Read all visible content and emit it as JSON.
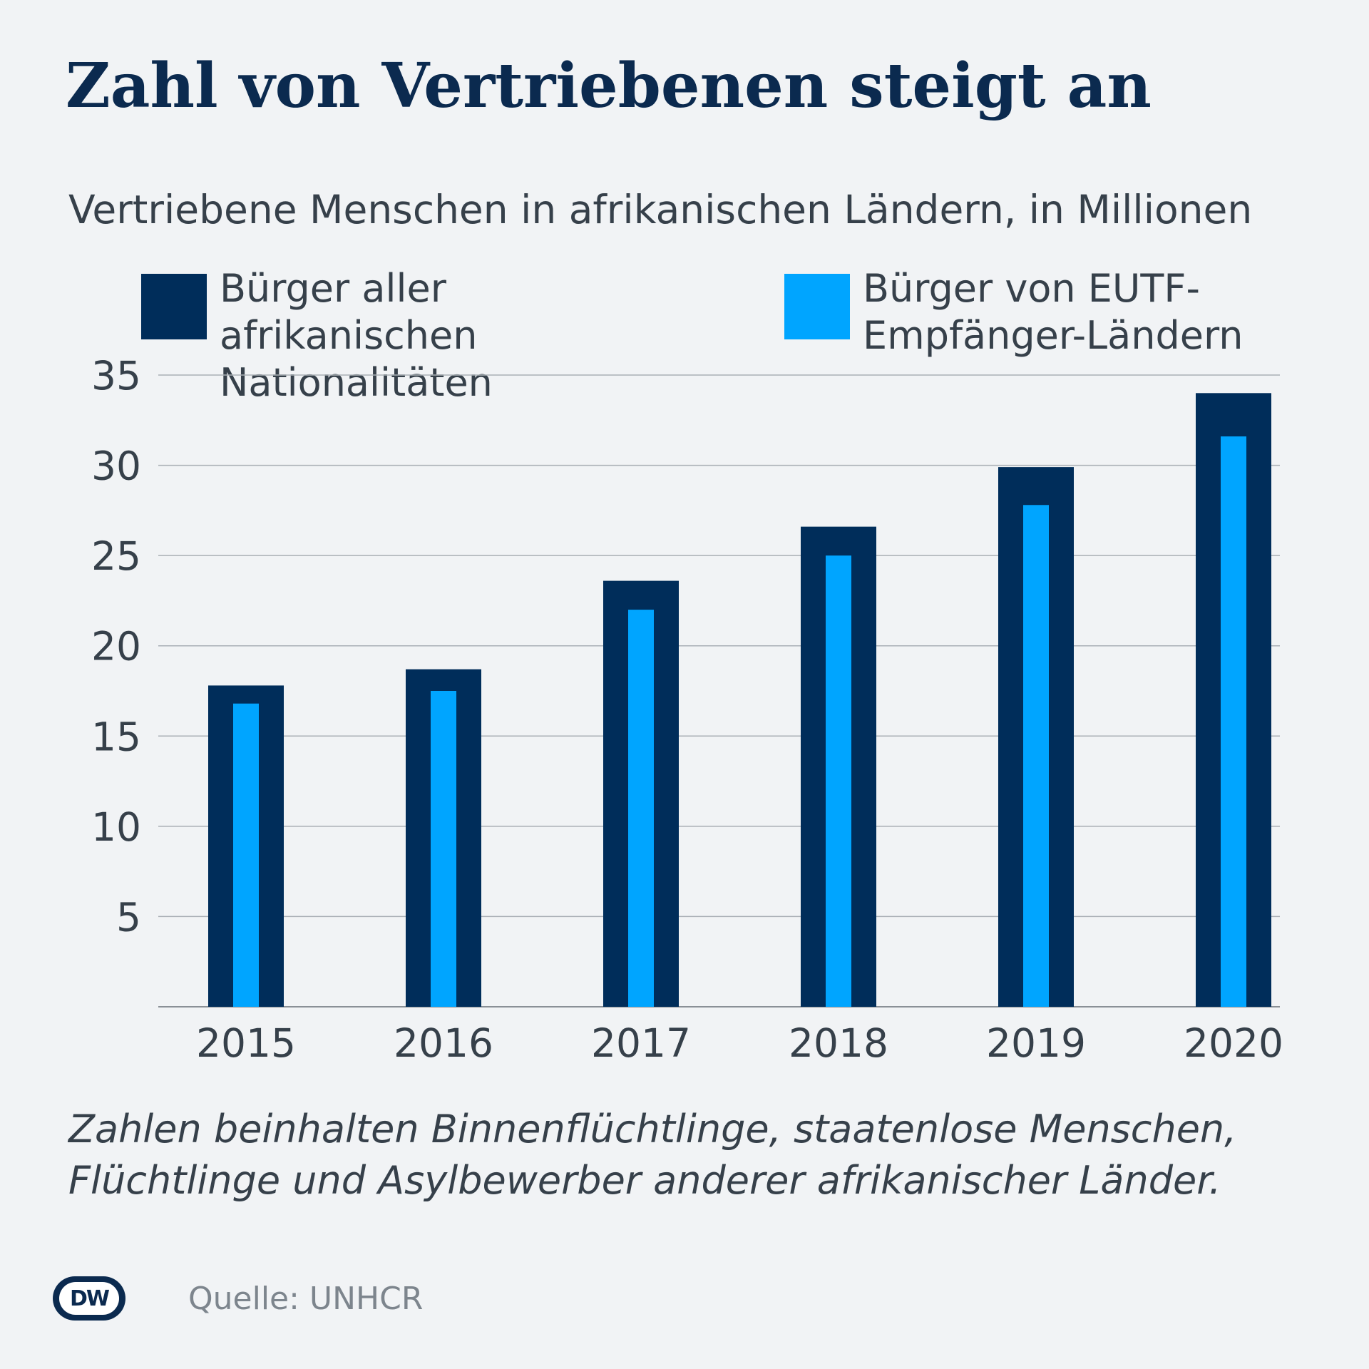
{
  "title": "Zahl von Vertriebenen steigt an",
  "subtitle": "Vertriebene Menschen in afrikanischen Ländern, in Millionen",
  "legend": [
    {
      "label": "Bürger aller afrikanischen Nationalitäten",
      "color": "#002d5a"
    },
    {
      "label": "Bürger von EUTF-Empfänger-Ländern",
      "color": "#00a5ff"
    }
  ],
  "chart_data": {
    "type": "bar",
    "categories": [
      "2015",
      "2016",
      "2017",
      "2018",
      "2019",
      "2020"
    ],
    "series": [
      {
        "name": "Bürger aller afrikanischen Nationalitäten",
        "values": [
          17.8,
          18.7,
          23.6,
          26.6,
          29.9,
          34.0
        ],
        "color": "#002d5a"
      },
      {
        "name": "Bürger von EUTF-Empfänger-Ländern",
        "values": [
          16.8,
          17.5,
          22.0,
          25.0,
          27.8,
          31.6
        ],
        "color": "#00a5ff"
      }
    ],
    "yticks": [
      5,
      10,
      15,
      20,
      25,
      30,
      35
    ],
    "ylim": [
      0,
      35
    ],
    "grid": true,
    "layout": "overlapping"
  },
  "footnote": "Zahlen beinhalten Binnenflüchtlinge, staatenlose Menschen, Flüchtlinge und Asylbewerber anderer afrikanischer Länder.",
  "logo_text": "DW",
  "source": "Quelle: UNHCR"
}
